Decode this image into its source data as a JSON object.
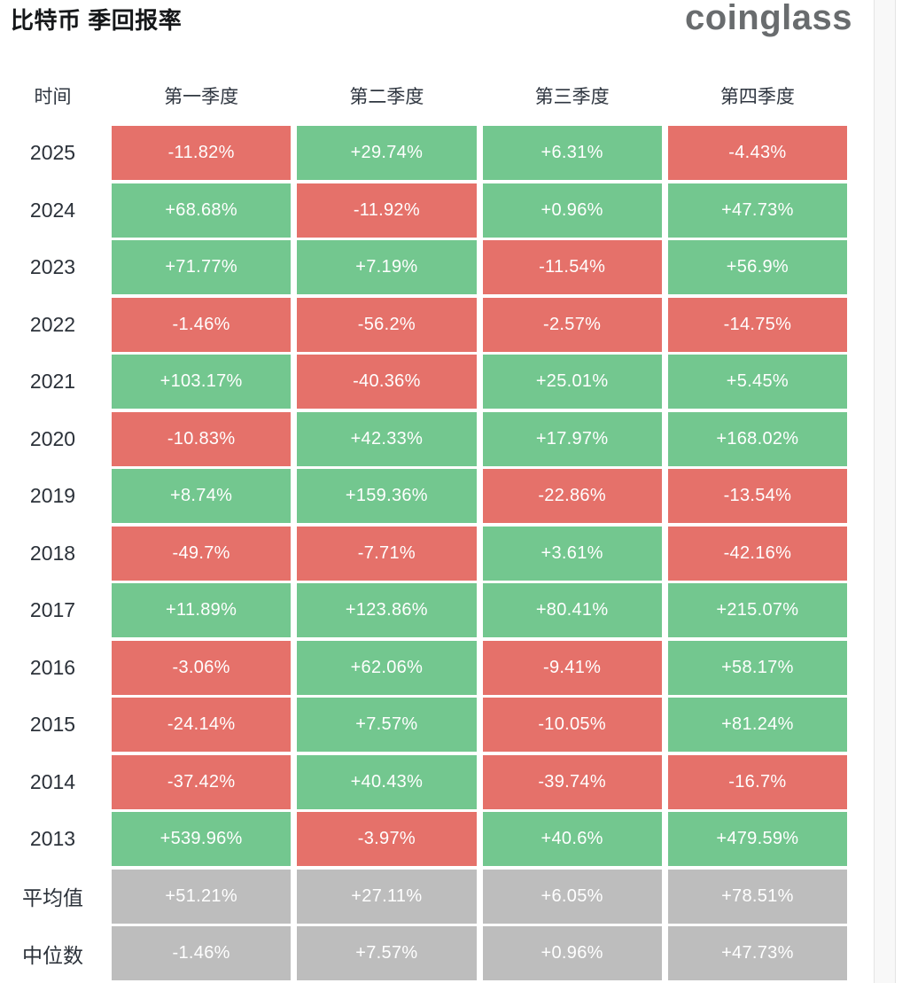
{
  "header": {
    "title": "比特币 季回报率",
    "logo": "coinglass"
  },
  "colors": {
    "positive": "#73c78f",
    "negative": "#e5716a",
    "neutral": "#bdbdbd",
    "cell_text": "#ffffff"
  },
  "table": {
    "headers": [
      "时间",
      "第一季度",
      "第二季度",
      "第三季度",
      "第四季度"
    ],
    "rows": [
      {
        "label": "2025",
        "cells": [
          {
            "text": "-11.82%",
            "type": "negative"
          },
          {
            "text": "+29.74%",
            "type": "positive"
          },
          {
            "text": "+6.31%",
            "type": "positive"
          },
          {
            "text": "-4.43%",
            "type": "negative"
          }
        ]
      },
      {
        "label": "2024",
        "cells": [
          {
            "text": "+68.68%",
            "type": "positive"
          },
          {
            "text": "-11.92%",
            "type": "negative"
          },
          {
            "text": "+0.96%",
            "type": "positive"
          },
          {
            "text": "+47.73%",
            "type": "positive"
          }
        ]
      },
      {
        "label": "2023",
        "cells": [
          {
            "text": "+71.77%",
            "type": "positive"
          },
          {
            "text": "+7.19%",
            "type": "positive"
          },
          {
            "text": "-11.54%",
            "type": "negative"
          },
          {
            "text": "+56.9%",
            "type": "positive"
          }
        ]
      },
      {
        "label": "2022",
        "cells": [
          {
            "text": "-1.46%",
            "type": "negative"
          },
          {
            "text": "-56.2%",
            "type": "negative"
          },
          {
            "text": "-2.57%",
            "type": "negative"
          },
          {
            "text": "-14.75%",
            "type": "negative"
          }
        ]
      },
      {
        "label": "2021",
        "cells": [
          {
            "text": "+103.17%",
            "type": "positive"
          },
          {
            "text": "-40.36%",
            "type": "negative"
          },
          {
            "text": "+25.01%",
            "type": "positive"
          },
          {
            "text": "+5.45%",
            "type": "positive"
          }
        ]
      },
      {
        "label": "2020",
        "cells": [
          {
            "text": "-10.83%",
            "type": "negative"
          },
          {
            "text": "+42.33%",
            "type": "positive"
          },
          {
            "text": "+17.97%",
            "type": "positive"
          },
          {
            "text": "+168.02%",
            "type": "positive"
          }
        ]
      },
      {
        "label": "2019",
        "cells": [
          {
            "text": "+8.74%",
            "type": "positive"
          },
          {
            "text": "+159.36%",
            "type": "positive"
          },
          {
            "text": "-22.86%",
            "type": "negative"
          },
          {
            "text": "-13.54%",
            "type": "negative"
          }
        ]
      },
      {
        "label": "2018",
        "cells": [
          {
            "text": "-49.7%",
            "type": "negative"
          },
          {
            "text": "-7.71%",
            "type": "negative"
          },
          {
            "text": "+3.61%",
            "type": "positive"
          },
          {
            "text": "-42.16%",
            "type": "negative"
          }
        ]
      },
      {
        "label": "2017",
        "cells": [
          {
            "text": "+11.89%",
            "type": "positive"
          },
          {
            "text": "+123.86%",
            "type": "positive"
          },
          {
            "text": "+80.41%",
            "type": "positive"
          },
          {
            "text": "+215.07%",
            "type": "positive"
          }
        ]
      },
      {
        "label": "2016",
        "cells": [
          {
            "text": "-3.06%",
            "type": "negative"
          },
          {
            "text": "+62.06%",
            "type": "positive"
          },
          {
            "text": "-9.41%",
            "type": "negative"
          },
          {
            "text": "+58.17%",
            "type": "positive"
          }
        ]
      },
      {
        "label": "2015",
        "cells": [
          {
            "text": "-24.14%",
            "type": "negative"
          },
          {
            "text": "+7.57%",
            "type": "positive"
          },
          {
            "text": "-10.05%",
            "type": "negative"
          },
          {
            "text": "+81.24%",
            "type": "positive"
          }
        ]
      },
      {
        "label": "2014",
        "cells": [
          {
            "text": "-37.42%",
            "type": "negative"
          },
          {
            "text": "+40.43%",
            "type": "positive"
          },
          {
            "text": "-39.74%",
            "type": "negative"
          },
          {
            "text": "-16.7%",
            "type": "negative"
          }
        ]
      },
      {
        "label": "2013",
        "cells": [
          {
            "text": "+539.96%",
            "type": "positive"
          },
          {
            "text": "-3.97%",
            "type": "negative"
          },
          {
            "text": "+40.6%",
            "type": "positive"
          },
          {
            "text": "+479.59%",
            "type": "positive"
          }
        ]
      },
      {
        "label": "平均值",
        "cells": [
          {
            "text": "+51.21%",
            "type": "neutral"
          },
          {
            "text": "+27.11%",
            "type": "neutral"
          },
          {
            "text": "+6.05%",
            "type": "neutral"
          },
          {
            "text": "+78.51%",
            "type": "neutral"
          }
        ]
      },
      {
        "label": "中位数",
        "cells": [
          {
            "text": "-1.46%",
            "type": "neutral"
          },
          {
            "text": "+7.57%",
            "type": "neutral"
          },
          {
            "text": "+0.96%",
            "type": "neutral"
          },
          {
            "text": "+47.73%",
            "type": "neutral"
          }
        ]
      }
    ]
  },
  "chart_data": {
    "type": "table",
    "title": "比特币 季回报率",
    "columns": [
      "时间",
      "第一季度",
      "第二季度",
      "第三季度",
      "第四季度"
    ],
    "unit": "percent",
    "rows": [
      {
        "label": "2025",
        "values": [
          -11.82,
          29.74,
          6.31,
          -4.43
        ]
      },
      {
        "label": "2024",
        "values": [
          68.68,
          -11.92,
          0.96,
          47.73
        ]
      },
      {
        "label": "2023",
        "values": [
          71.77,
          7.19,
          -11.54,
          56.9
        ]
      },
      {
        "label": "2022",
        "values": [
          -1.46,
          -56.2,
          -2.57,
          -14.75
        ]
      },
      {
        "label": "2021",
        "values": [
          103.17,
          -40.36,
          25.01,
          5.45
        ]
      },
      {
        "label": "2020",
        "values": [
          -10.83,
          42.33,
          17.97,
          168.02
        ]
      },
      {
        "label": "2019",
        "values": [
          8.74,
          159.36,
          -22.86,
          -13.54
        ]
      },
      {
        "label": "2018",
        "values": [
          -49.7,
          -7.71,
          3.61,
          -42.16
        ]
      },
      {
        "label": "2017",
        "values": [
          11.89,
          123.86,
          80.41,
          215.07
        ]
      },
      {
        "label": "2016",
        "values": [
          -3.06,
          62.06,
          -9.41,
          58.17
        ]
      },
      {
        "label": "2015",
        "values": [
          -24.14,
          7.57,
          -10.05,
          81.24
        ]
      },
      {
        "label": "2014",
        "values": [
          -37.42,
          40.43,
          -39.74,
          -16.7
        ]
      },
      {
        "label": "2013",
        "values": [
          539.96,
          -3.97,
          40.6,
          479.59
        ]
      },
      {
        "label": "平均值",
        "values": [
          51.21,
          27.11,
          6.05,
          78.51
        ]
      },
      {
        "label": "中位数",
        "values": [
          -1.46,
          7.57,
          0.96,
          47.73
        ]
      }
    ],
    "layout_hints": {
      "color_coding": "green = positive return, red = negative return, gray = aggregate rows (average / median)",
      "legend": "none",
      "grid": "off"
    }
  }
}
